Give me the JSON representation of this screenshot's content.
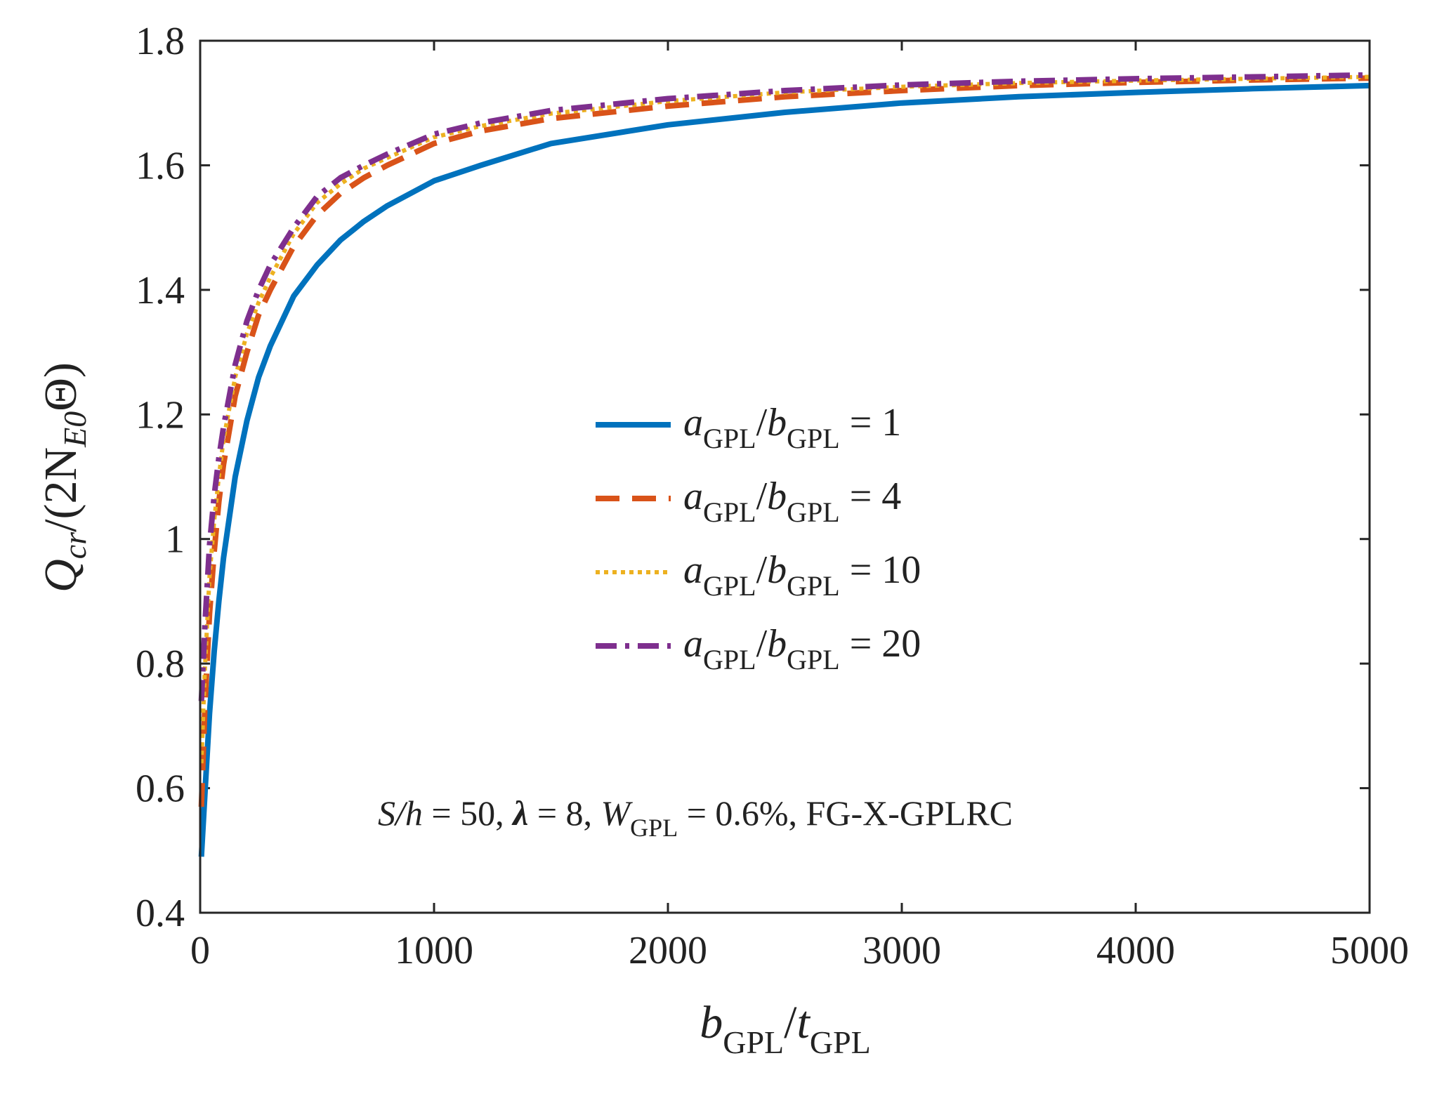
{
  "chart_data": {
    "type": "line",
    "xlim": [
      0,
      5000
    ],
    "ylim": [
      0.4,
      1.8
    ],
    "xticks": [
      "0",
      "1000",
      "2000",
      "3000",
      "4000",
      "5000"
    ],
    "yticks": [
      "0.4",
      "0.6",
      "0.8",
      "1",
      "1.2",
      "1.4",
      "1.6",
      "1.8"
    ],
    "xlabel": {
      "main": "b",
      "sub1": "GPL",
      "slash": "/",
      "main2": "t",
      "sub2": "GPL"
    },
    "ylabel": {
      "main": "Q",
      "sub1": "cr",
      "mid": "/(2N",
      "sub2": "E0",
      "end": "Θ)"
    },
    "annotation": {
      "p1": "S/h",
      "p2": " = 50, ",
      "p3": "λ",
      "p4": " = 8, ",
      "p5": "W",
      "p6": "GPL",
      "p7": " = 0.6%, FG-X-GPLRC"
    },
    "legend_position": "center-right",
    "series": [
      {
        "name": "aGPL/bGPL = 1",
        "label": {
          "a": "a",
          "as": "GPL",
          "slash": "/",
          "b": "b",
          "bs": "GPL",
          "eq": " = 1"
        },
        "color": "#0072BD",
        "dash": "solid",
        "x": [
          5,
          20,
          40,
          60,
          80,
          100,
          150,
          200,
          250,
          300,
          400,
          500,
          600,
          700,
          800,
          1000,
          1200,
          1500,
          2000,
          2500,
          3000,
          3500,
          4000,
          4500,
          5000
        ],
        "y": [
          0.49,
          0.59,
          0.72,
          0.82,
          0.9,
          0.97,
          1.1,
          1.19,
          1.26,
          1.31,
          1.39,
          1.44,
          1.48,
          1.51,
          1.535,
          1.575,
          1.6,
          1.635,
          1.665,
          1.685,
          1.7,
          1.71,
          1.717,
          1.723,
          1.728
        ]
      },
      {
        "name": "aGPL/bGPL = 4",
        "label": {
          "a": "a",
          "as": "GPL",
          "slash": "/",
          "b": "b",
          "bs": "GPL",
          "eq": " = 4"
        },
        "color": "#D95319",
        "dash": "dashed",
        "x": [
          5,
          20,
          40,
          60,
          80,
          100,
          150,
          200,
          250,
          300,
          400,
          500,
          600,
          700,
          800,
          1000,
          1200,
          1500,
          2000,
          2500,
          3000,
          3500,
          4000,
          4500,
          5000
        ],
        "y": [
          0.57,
          0.73,
          0.88,
          0.98,
          1.06,
          1.12,
          1.23,
          1.3,
          1.36,
          1.4,
          1.47,
          1.52,
          1.555,
          1.58,
          1.6,
          1.635,
          1.655,
          1.675,
          1.695,
          1.71,
          1.72,
          1.728,
          1.733,
          1.737,
          1.74
        ]
      },
      {
        "name": "aGPL/bGPL = 10",
        "label": {
          "a": "a",
          "as": "GPL",
          "slash": "/",
          "b": "b",
          "bs": "GPL",
          "eq": " = 10"
        },
        "color": "#EDB120",
        "dash": "dotted",
        "x": [
          5,
          20,
          40,
          60,
          80,
          100,
          150,
          200,
          250,
          300,
          400,
          500,
          600,
          700,
          800,
          1000,
          1200,
          1500,
          2000,
          2500,
          3000,
          3500,
          4000,
          4500,
          5000
        ],
        "y": [
          0.64,
          0.79,
          0.94,
          1.03,
          1.1,
          1.16,
          1.26,
          1.33,
          1.38,
          1.42,
          1.49,
          1.54,
          1.57,
          1.595,
          1.612,
          1.645,
          1.663,
          1.683,
          1.703,
          1.717,
          1.726,
          1.732,
          1.736,
          1.739,
          1.742
        ]
      },
      {
        "name": "aGPL/bGPL = 20",
        "label": {
          "a": "a",
          "as": "GPL",
          "slash": "/",
          "b": "b",
          "bs": "GPL",
          "eq": " = 20"
        },
        "color": "#7E2F8E",
        "dash": "dashdot",
        "x": [
          5,
          20,
          40,
          60,
          80,
          100,
          150,
          200,
          250,
          300,
          400,
          500,
          600,
          700,
          800,
          1000,
          1200,
          1500,
          2000,
          2500,
          3000,
          3500,
          4000,
          4500,
          5000
        ],
        "y": [
          0.74,
          0.86,
          0.99,
          1.07,
          1.13,
          1.18,
          1.28,
          1.35,
          1.4,
          1.44,
          1.5,
          1.55,
          1.58,
          1.6,
          1.618,
          1.65,
          1.668,
          1.688,
          1.707,
          1.72,
          1.729,
          1.735,
          1.739,
          1.742,
          1.745
        ]
      }
    ]
  }
}
